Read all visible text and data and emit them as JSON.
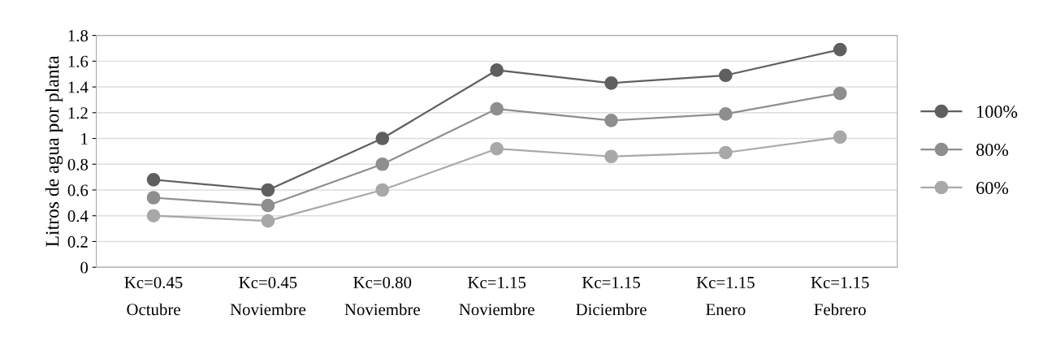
{
  "chart_data": {
    "type": "line",
    "ylabel": "Litros de agua por planta",
    "categories": [
      "Kc=0.45\nOctubre",
      "Kc=0.45\nNoviembre",
      "Kc=0.80\nNoviembre",
      "Kc=1.15\nNoviembre",
      "Kc=1.15\nDiciembre",
      "Kc=1.15\nEnero",
      "Kc=1.15\nFebrero"
    ],
    "series": [
      {
        "name": "100%",
        "color": "#5f5f5f",
        "values": [
          0.68,
          0.6,
          1.0,
          1.53,
          1.43,
          1.49,
          1.69
        ]
      },
      {
        "name": "80%",
        "color": "#8e8e8e",
        "values": [
          0.54,
          0.48,
          0.8,
          1.23,
          1.14,
          1.19,
          1.35
        ]
      },
      {
        "name": "60%",
        "color": "#a8a8a8",
        "values": [
          0.4,
          0.36,
          0.6,
          0.92,
          0.86,
          0.89,
          1.01
        ]
      }
    ],
    "ylim": [
      0,
      1.8
    ],
    "yticks": [
      0,
      0.2,
      0.4,
      0.6,
      0.8,
      1,
      1.2,
      1.4,
      1.6,
      1.8
    ],
    "grid": "y",
    "legend": "right",
    "marker": "circle",
    "line_style": "solid"
  }
}
